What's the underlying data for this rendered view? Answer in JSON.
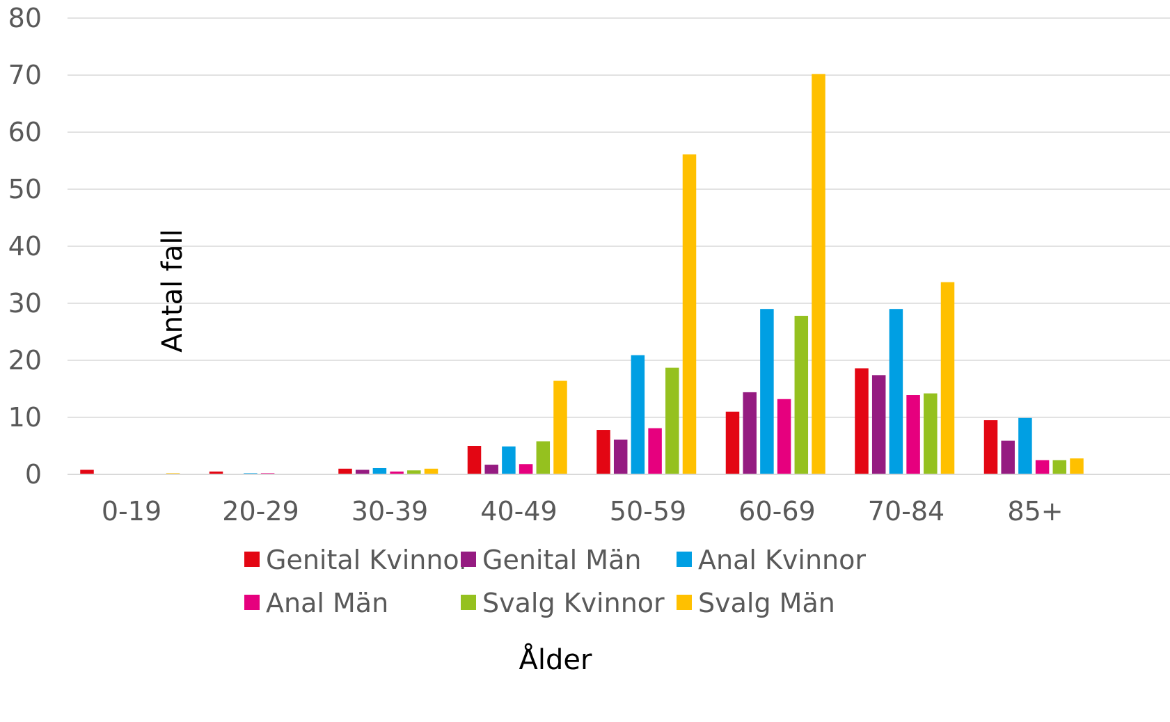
{
  "chart_data": {
    "type": "bar",
    "title": "",
    "xlabel": "Ålder",
    "ylabel": "Antal fall",
    "ylim": [
      0,
      80
    ],
    "y_ticks": [
      "0",
      "10",
      "20",
      "30",
      "40",
      "50",
      "60",
      "70",
      "80"
    ],
    "grid": true,
    "legend_position": "bottom",
    "categories": [
      "0-19",
      "20-29",
      "30-39",
      "40-49",
      "50-59",
      "60-69",
      "70-84",
      "85+"
    ],
    "series": [
      {
        "name": "Genital Kvinnor",
        "color": "#e30613",
        "values": [
          0.8,
          0.5,
          1.0,
          5.0,
          7.8,
          11.0,
          18.6,
          9.5
        ]
      },
      {
        "name": "Genital Män",
        "color": "#951b81",
        "values": [
          0,
          0.1,
          0.8,
          1.7,
          6.1,
          14.4,
          17.4,
          5.9
        ]
      },
      {
        "name": "Anal Kvinnor",
        "color": "#009fe3",
        "values": [
          0,
          0.2,
          1.1,
          4.9,
          20.9,
          29.0,
          29.0,
          9.9
        ]
      },
      {
        "name": "Anal Män",
        "color": "#e6007e",
        "values": [
          0,
          0.2,
          0.5,
          1.8,
          8.1,
          13.2,
          13.9,
          2.5
        ]
      },
      {
        "name": "Svalg Kvinnor",
        "color": "#95c11f",
        "values": [
          0,
          0,
          0.7,
          5.8,
          18.7,
          27.8,
          14.2,
          2.5
        ]
      },
      {
        "name": "Svalg Män",
        "color": "#ffc000",
        "values": [
          0.2,
          0,
          1.0,
          16.4,
          56.1,
          70.2,
          33.7,
          2.8
        ]
      }
    ]
  }
}
